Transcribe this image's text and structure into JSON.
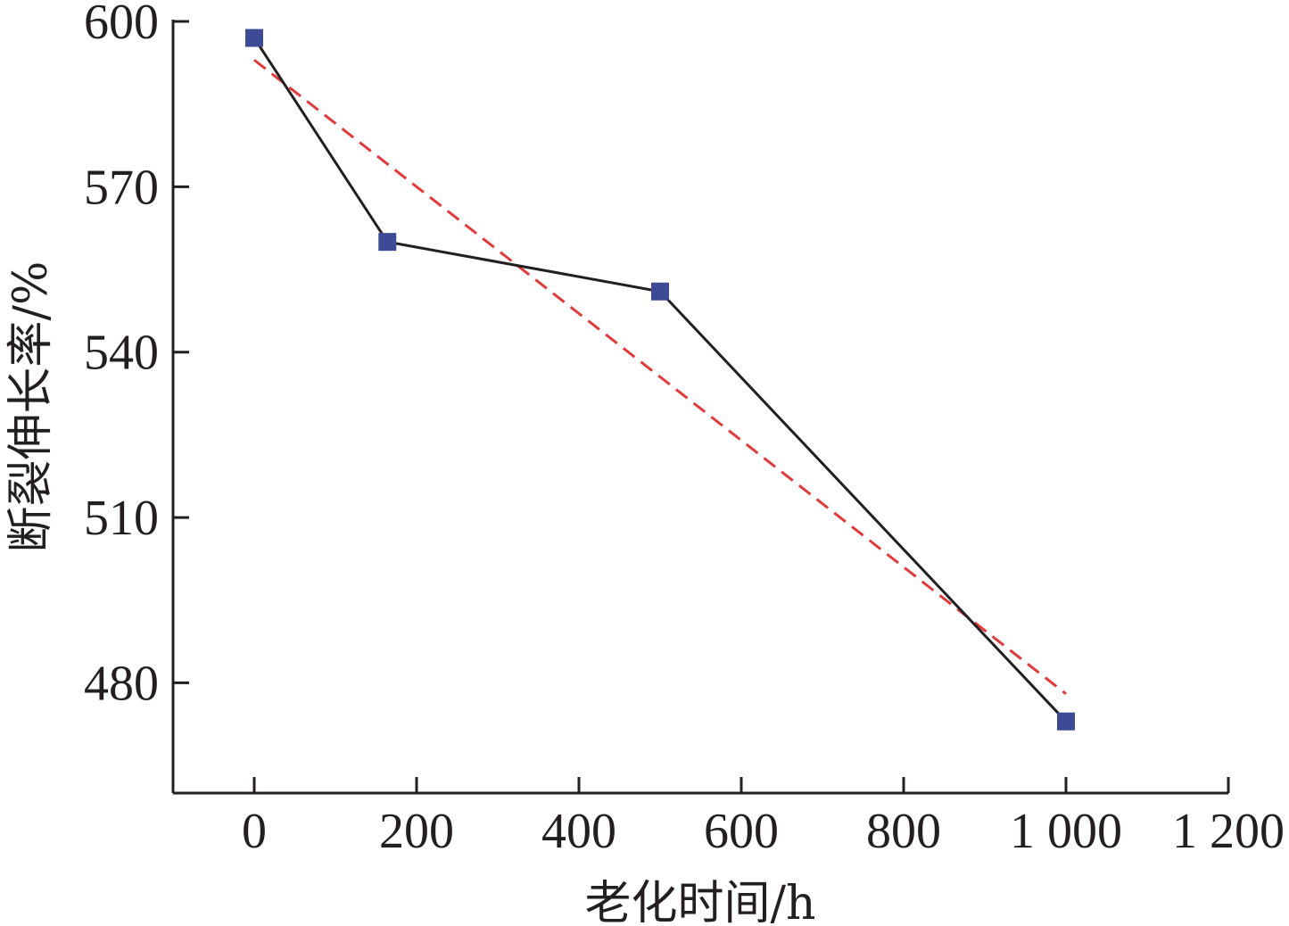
{
  "chart_data": {
    "type": "line",
    "xlabel": "老化时间/h",
    "ylabel": "断裂伸长率/%",
    "xlim": [
      -100,
      1200
    ],
    "ylim": [
      460,
      600
    ],
    "x_ticks": [
      0,
      200,
      400,
      600,
      800,
      1000,
      1200
    ],
    "x_tick_labels": [
      "0",
      "200",
      "400",
      "600",
      "800",
      "1 000",
      "1 200"
    ],
    "y_ticks": [
      480,
      510,
      540,
      570,
      600
    ],
    "y_tick_labels": [
      "480",
      "510",
      "540",
      "570",
      "600"
    ],
    "grid": false,
    "series": [
      {
        "style": "solid-with-square-markers",
        "color": "#231f20",
        "marker_color": "#3d4a96",
        "x": [
          0,
          164,
          500,
          1000
        ],
        "y": [
          597,
          560,
          551,
          473
        ]
      },
      {
        "style": "dashed-linear-fit",
        "color": "#e03a3a",
        "x": [
          0,
          1000
        ],
        "y": [
          593,
          478
        ]
      }
    ]
  }
}
